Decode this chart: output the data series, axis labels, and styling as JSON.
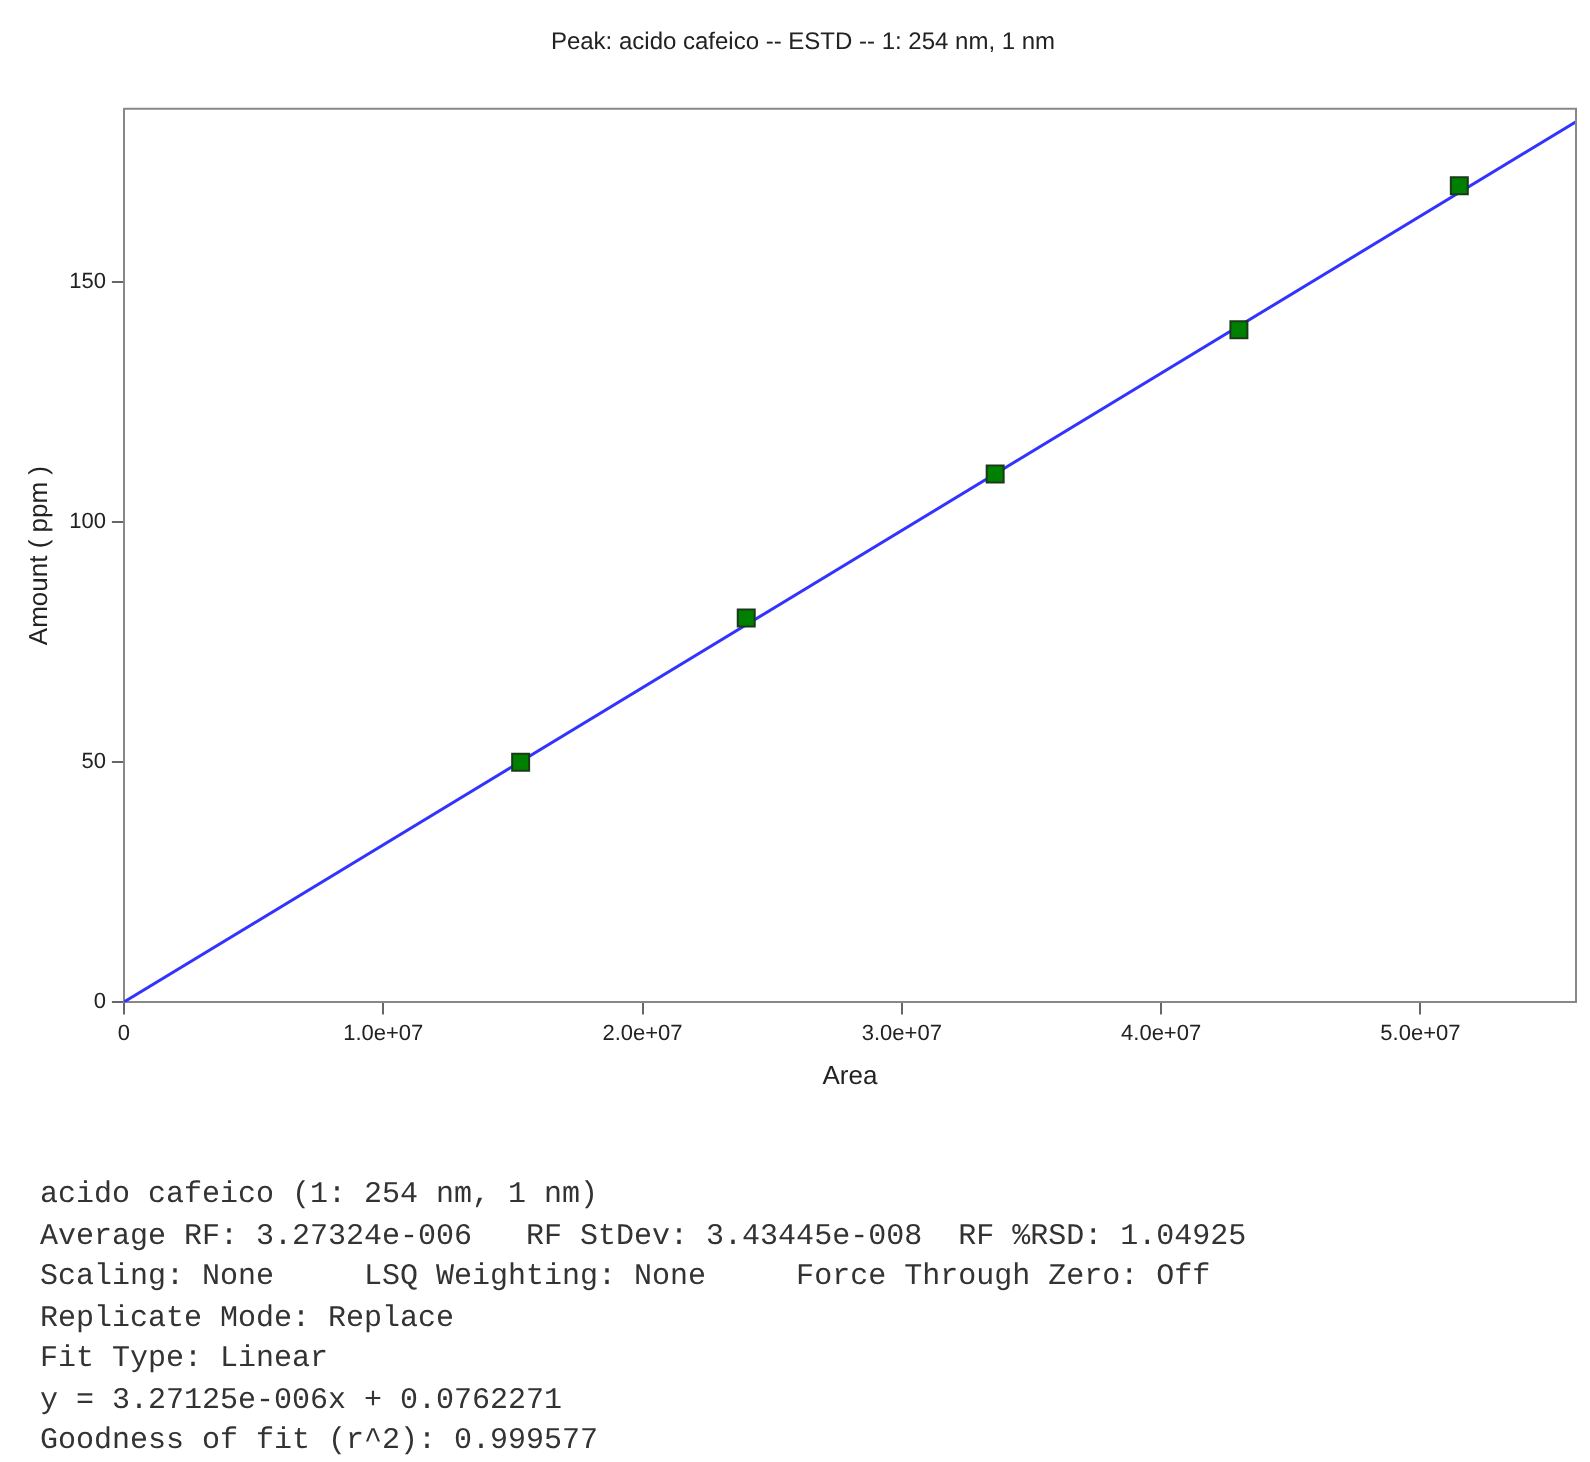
{
  "chart_data": {
    "type": "scatter",
    "title": "Peak: acido cafeico -- ESTD -- 1: 254 nm, 1 nm",
    "xlabel": "Area",
    "ylabel": "Amount ( ppm )",
    "x": [
      15300000.0,
      24000000.0,
      33600000.0,
      43000000.0,
      51500000.0
    ],
    "series": [
      {
        "type": "scatter",
        "color": "#008000",
        "marker": "square",
        "values": [
          50,
          80,
          110,
          140,
          170
        ]
      },
      {
        "type": "line",
        "color": "#3333ff",
        "marker": "none",
        "line_style": "solid",
        "x": [
          0,
          56000000.0
        ],
        "values": [
          0.08,
          183.3
        ]
      }
    ],
    "xlim": [
      0,
      56000000.0
    ],
    "ylim": [
      0,
      186
    ],
    "xticks": [
      0,
      {
        "value": 10000000.0,
        "label": "1.0e+07"
      },
      {
        "value": 20000000.0,
        "label": "2.0e+07"
      },
      {
        "value": 30000000.0,
        "label": "3.0e+07"
      },
      {
        "value": 40000000.0,
        "label": "4.0e+07"
      },
      {
        "value": 50000000.0,
        "label": "5.0e+07"
      }
    ],
    "yticks": [
      0,
      50,
      100,
      150
    ],
    "grid": false,
    "legend": false,
    "annotations": [
      "acido cafeico (1: 254 nm, 1 nm)",
      "Average RF: 3.27324e-006   RF StDev: 3.43445e-008  RF %RSD: 1.04925",
      "Scaling: None     LSQ Weighting: None     Force Through Zero: Off",
      "Replicate Mode: Replace",
      "Fit Type: Linear",
      "y = 3.27125e-006x + 0.0762271",
      "Goodness of fit (r^2): 0.999577"
    ]
  }
}
